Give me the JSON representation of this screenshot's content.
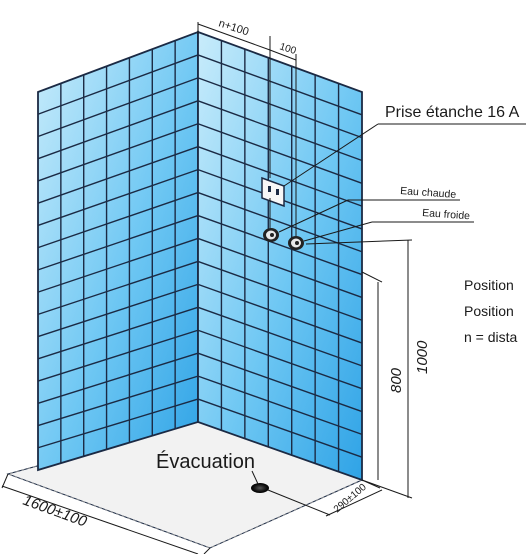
{
  "labels": {
    "prise": "Prise étanche 16 A",
    "eau_chaude": "Eau chaude",
    "eau_froide": "Eau froide",
    "evacuation": "Évacuation",
    "position_line_1": "Position",
    "position_line_2": "Position",
    "distance_line": "n = dista"
  },
  "dimensions": {
    "n_plus_100": "n+100",
    "hundred": "100",
    "height_800": "800",
    "height_1000": "1000",
    "width_1600": "1600±100",
    "drain_offset": "290±100"
  },
  "colors": {
    "tile_light": "#c9ecfb",
    "tile_dark": "#2fa3e6",
    "grout": "#1b2a44"
  },
  "icons": [
    "socket-icon",
    "hot-water-valve-icon",
    "cold-water-valve-icon",
    "drain-icon"
  ]
}
